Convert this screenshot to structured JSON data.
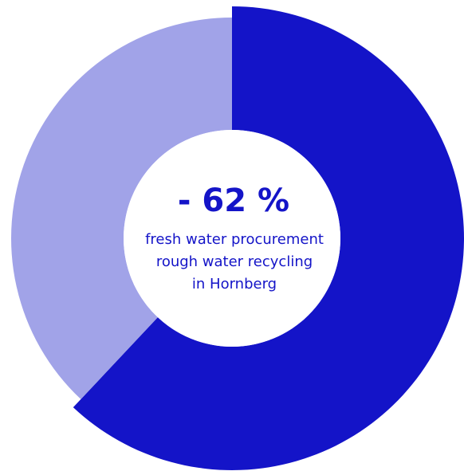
{
  "chart_data": {
    "type": "donut",
    "values": [
      62,
      38
    ],
    "colors": [
      "#1414c8",
      "#a1a3e8"
    ],
    "center_title": "- 62 %",
    "center_lines": [
      "fresh water procurement",
      "rough water recycling",
      "in Hornberg"
    ]
  }
}
